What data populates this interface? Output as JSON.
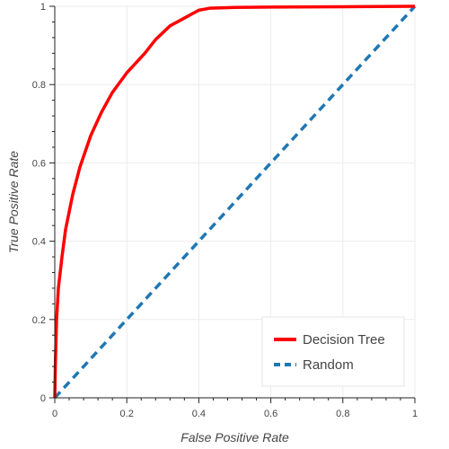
{
  "chart_data": {
    "type": "line",
    "title": "",
    "xlabel": "False Positive Rate",
    "ylabel": "True Positive Rate",
    "xlim": [
      0,
      1
    ],
    "ylim": [
      0,
      1
    ],
    "xticks": [
      "0",
      "0.2",
      "0.4",
      "0.6",
      "0.8",
      "1"
    ],
    "yticks": [
      "0",
      "0.2",
      "0.4",
      "0.6",
      "0.8",
      "1"
    ],
    "grid": true,
    "legend_position": "bottom-right",
    "series": [
      {
        "name": "Decision Tree",
        "color": "#ff0000",
        "style": "solid",
        "points": [
          [
            0,
            0
          ],
          [
            0.002,
            0.1
          ],
          [
            0.005,
            0.2
          ],
          [
            0.01,
            0.28
          ],
          [
            0.02,
            0.36
          ],
          [
            0.03,
            0.43
          ],
          [
            0.05,
            0.52
          ],
          [
            0.07,
            0.59
          ],
          [
            0.1,
            0.67
          ],
          [
            0.13,
            0.73
          ],
          [
            0.16,
            0.78
          ],
          [
            0.2,
            0.83
          ],
          [
            0.25,
            0.88
          ],
          [
            0.28,
            0.915
          ],
          [
            0.32,
            0.95
          ],
          [
            0.36,
            0.97
          ],
          [
            0.4,
            0.99
          ],
          [
            0.43,
            0.995
          ],
          [
            0.5,
            0.997
          ],
          [
            0.6,
            0.998
          ],
          [
            0.8,
            0.999
          ],
          [
            1,
            1
          ]
        ]
      },
      {
        "name": "Random",
        "color": "#1f77b4",
        "style": "dashed",
        "points": [
          [
            0,
            0
          ],
          [
            1,
            1
          ]
        ]
      }
    ]
  }
}
